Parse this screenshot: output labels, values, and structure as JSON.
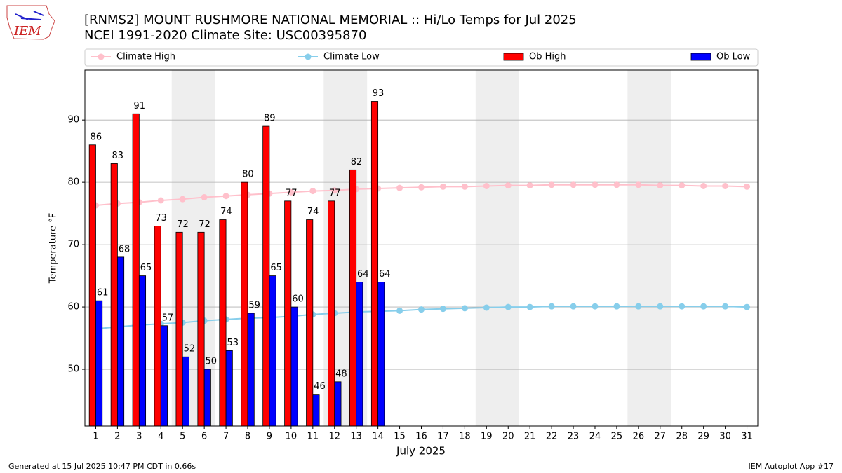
{
  "chart_data": {
    "type": "bar",
    "title": "[RNMS2] MOUNT RUSHMORE NATIONAL MEMORIAL :: Hi/Lo Temps for Jul 2025",
    "subtitle": "NCEI 1991-2020 Climate Site: USC00395870",
    "logo_text": "IEM",
    "xlabel": "July 2025",
    "ylabel": "Temperature °F",
    "footer_left": "Generated at 15 Jul 2025 10:47 PM CDT in 0.66s",
    "footer_right": "IEM Autoplot App #17",
    "legend": "top",
    "grid": true,
    "x": [
      1,
      2,
      3,
      4,
      5,
      6,
      7,
      8,
      9,
      10,
      11,
      12,
      13,
      14,
      15,
      16,
      17,
      18,
      19,
      20,
      21,
      22,
      23,
      24,
      25,
      26,
      27,
      28,
      29,
      30,
      31
    ],
    "xlim": [
      0.5,
      31.5
    ],
    "xticks": [
      1,
      2,
      3,
      4,
      5,
      6,
      7,
      8,
      9,
      10,
      11,
      12,
      13,
      14,
      15,
      16,
      17,
      18,
      19,
      20,
      21,
      22,
      23,
      24,
      25,
      26,
      27,
      28,
      29,
      30,
      31
    ],
    "ylim": [
      40.9,
      98
    ],
    "yticks": [
      50,
      60,
      70,
      80,
      90
    ],
    "weekend_spans": [
      [
        4.5,
        6.5
      ],
      [
        11.5,
        13.5
      ],
      [
        18.5,
        20.5
      ],
      [
        25.5,
        27.5
      ]
    ],
    "series": [
      {
        "name": "Climate High",
        "type": "line",
        "color": "#ffc0cb",
        "values": [
          76.3,
          76.6,
          76.8,
          77.1,
          77.3,
          77.6,
          77.8,
          78.0,
          78.2,
          78.4,
          78.6,
          78.7,
          78.9,
          79.0,
          79.1,
          79.2,
          79.3,
          79.3,
          79.4,
          79.5,
          79.5,
          79.6,
          79.6,
          79.6,
          79.6,
          79.6,
          79.5,
          79.5,
          79.4,
          79.4,
          79.3
        ]
      },
      {
        "name": "Climate Low",
        "type": "line",
        "color": "#87ceeb",
        "values": [
          56.5,
          56.8,
          57.1,
          57.3,
          57.5,
          57.8,
          58.0,
          58.2,
          58.3,
          58.5,
          58.8,
          59.0,
          59.2,
          59.3,
          59.4,
          59.6,
          59.7,
          59.8,
          59.9,
          60.0,
          60.0,
          60.1,
          60.1,
          60.1,
          60.1,
          60.1,
          60.1,
          60.1,
          60.1,
          60.1,
          60.0
        ]
      },
      {
        "name": "Ob High",
        "type": "bar",
        "color": "#ff0000",
        "values": [
          86,
          83,
          91,
          73,
          72,
          72,
          74,
          80,
          89,
          77,
          74,
          77,
          82,
          93,
          null,
          null,
          null,
          null,
          null,
          null,
          null,
          null,
          null,
          null,
          null,
          null,
          null,
          null,
          null,
          null,
          null
        ]
      },
      {
        "name": "Ob Low",
        "type": "bar",
        "color": "#0000ff",
        "values": [
          61,
          68,
          65,
          57,
          52,
          50,
          53,
          59,
          65,
          60,
          46,
          48,
          64,
          64,
          null,
          null,
          null,
          null,
          null,
          null,
          null,
          null,
          null,
          null,
          null,
          null,
          null,
          null,
          null,
          null,
          null
        ]
      }
    ]
  }
}
